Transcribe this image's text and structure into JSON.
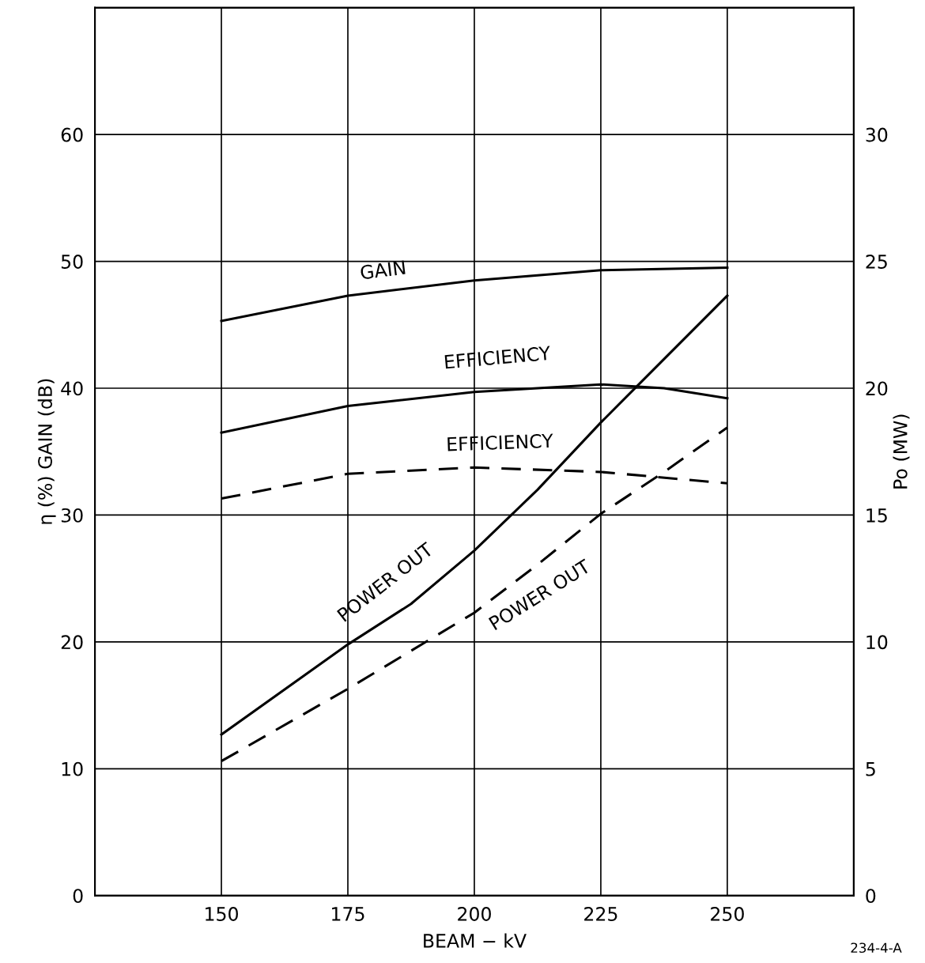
{
  "chart_data": {
    "type": "line",
    "xlabel": "BEAM − kV",
    "ylabel": "η (%) GAIN (dB)",
    "y2label": "Po (MW)",
    "xlim": [
      125,
      275
    ],
    "xticks": [
      150,
      175,
      200,
      225,
      250
    ],
    "ylim": [
      0,
      70
    ],
    "yticks": [
      0,
      10,
      20,
      30,
      40,
      50,
      60
    ],
    "y2lim": [
      0,
      35
    ],
    "y2ticks": [
      0,
      5,
      10,
      15,
      20,
      25,
      30
    ],
    "grid": true,
    "marker": "none",
    "series": [
      {
        "name": "GAIN",
        "color": "#000000",
        "line_style": "solid",
        "x": [
          150,
          175,
          200,
          225,
          250
        ],
        "values": [
          45.3,
          47.3,
          48.5,
          49.3,
          49.5
        ]
      },
      {
        "name": "EFFICIENCY",
        "color": "#000000",
        "line_style": "solid",
        "x": [
          150,
          175,
          200,
          225,
          237.5,
          250
        ],
        "values": [
          36.5,
          38.6,
          39.7,
          40.3,
          40.0,
          39.2
        ]
      },
      {
        "name": "EFFICIENCY",
        "color": "#000000",
        "line_style": "dashed",
        "x": [
          150,
          175,
          200,
          225,
          250
        ],
        "values": [
          31.3,
          33.25,
          33.75,
          33.4,
          32.5
        ]
      },
      {
        "name": "POWER OUT",
        "color": "#000000",
        "line_style": "solid",
        "axis": "y2",
        "x": [
          150,
          175,
          187.5,
          200,
          212.5,
          225,
          237.5,
          250
        ],
        "values": [
          6.35,
          9.9,
          11.5,
          13.6,
          16.0,
          18.65,
          21.15,
          23.65
        ]
      },
      {
        "name": "POWER OUT",
        "color": "#000000",
        "line_style": "dashed",
        "axis": "y2",
        "x": [
          150,
          175,
          187.5,
          200,
          212.5,
          225,
          237.5,
          250
        ],
        "values": [
          5.3,
          8.15,
          9.65,
          11.15,
          13.05,
          15.05,
          16.7,
          18.45
        ]
      }
    ],
    "annotations": [
      "234-4-A"
    ]
  }
}
